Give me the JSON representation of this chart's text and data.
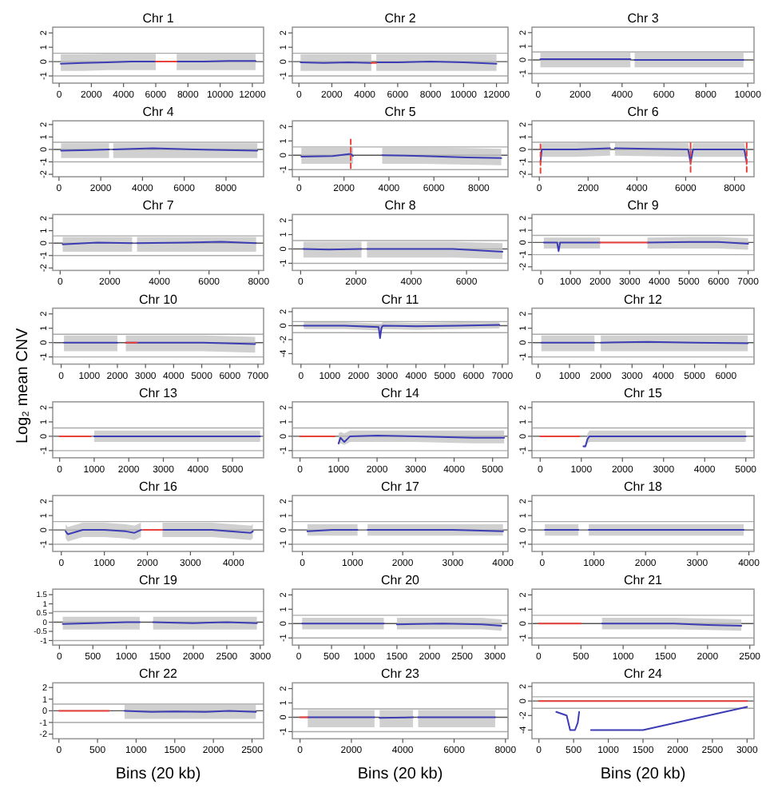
{
  "chart_data": [
    {
      "type": "line",
      "title": "Chr 1",
      "xlim": [
        -400,
        12700
      ],
      "xticks": [
        0,
        2000,
        4000,
        6000,
        8000,
        10000,
        12000
      ],
      "ylim": [
        -1.5,
        2.4
      ],
      "yticks": [
        -1,
        0,
        1,
        2
      ],
      "ref_lines": [
        {
          "axis": "y",
          "value": 0.58,
          "color": "#aaaaaa"
        },
        {
          "axis": "y",
          "value": 0,
          "color": "#555555"
        },
        {
          "axis": "y",
          "value": -1,
          "color": "#aaaaaa"
        }
      ],
      "series": [
        {
          "color": "#3c3cb4",
          "x": [
            100,
            1500,
            3000,
            4500,
            6000,
            6500,
            7300,
            9000,
            10500,
            12200
          ],
          "values": [
            -0.15,
            -0.1,
            -0.05,
            0,
            0,
            null,
            0,
            0,
            0.05,
            0.05
          ],
          "lower": [
            -0.65,
            -0.65,
            -0.6,
            -0.6,
            -0.6,
            null,
            -0.6,
            -0.6,
            -0.6,
            -0.6
          ],
          "upper": [
            0.5,
            0.5,
            0.55,
            0.55,
            0.55,
            null,
            0.55,
            0.55,
            0.55,
            0.55
          ]
        },
        {
          "color": "#e8413c",
          "x": [
            6000,
            7300
          ],
          "values": [
            0,
            0
          ]
        }
      ]
    },
    {
      "type": "line",
      "title": "Chr 2",
      "xlim": [
        -400,
        12700
      ],
      "xticks": [
        0,
        2000,
        4000,
        6000,
        8000,
        10000,
        12000
      ],
      "ylim": [
        -1.5,
        2.4
      ],
      "yticks": [
        -1,
        0,
        1,
        2
      ],
      "ref_lines": [
        {
          "axis": "y",
          "value": 0.58,
          "color": "#aaaaaa"
        },
        {
          "axis": "y",
          "value": 0,
          "color": "#555555"
        },
        {
          "axis": "y",
          "value": -1,
          "color": "#aaaaaa"
        }
      ],
      "series": [
        {
          "color": "#3c3cb4",
          "x": [
            100,
            1500,
            3000,
            4400,
            4550,
            4700,
            6000,
            8000,
            10000,
            12000
          ],
          "values": [
            -0.05,
            -0.1,
            -0.05,
            -0.1,
            null,
            -0.05,
            -0.05,
            0,
            -0.05,
            -0.15
          ],
          "lower": [
            -0.65,
            -0.65,
            -0.65,
            -0.65,
            null,
            -0.65,
            -0.65,
            -0.65,
            -0.65,
            -0.65
          ],
          "upper": [
            0.5,
            0.5,
            0.5,
            0.5,
            null,
            0.5,
            0.5,
            0.5,
            0.5,
            0.5
          ]
        },
        {
          "color": "#e8413c",
          "x": [
            4400,
            4700
          ],
          "values": [
            -0.1,
            -0.1
          ]
        }
      ]
    },
    {
      "type": "line",
      "title": "Chr 3",
      "xlim": [
        -300,
        10300
      ],
      "xticks": [
        0,
        2000,
        4000,
        6000,
        8000,
        10000
      ],
      "ylim": [
        -1.7,
        2.4
      ],
      "yticks": [
        -1,
        0,
        1,
        2
      ],
      "ref_lines": [
        {
          "axis": "y",
          "value": 0.58,
          "color": "#aaaaaa"
        },
        {
          "axis": "y",
          "value": 0,
          "color": "#555555"
        },
        {
          "axis": "y",
          "value": -1,
          "color": "#aaaaaa"
        }
      ],
      "series": [
        {
          "color": "#3c3cb4",
          "x": [
            100,
            2000,
            4400,
            4500,
            4600,
            6000,
            8000,
            9800
          ],
          "values": [
            0.05,
            0.05,
            0.05,
            null,
            0,
            0,
            0,
            0
          ],
          "lower": [
            -0.55,
            -0.55,
            -0.55,
            null,
            -0.55,
            -0.55,
            -0.55,
            -0.55
          ],
          "upper": [
            0.6,
            0.6,
            0.6,
            null,
            0.6,
            0.6,
            0.6,
            0.6
          ]
        }
      ]
    },
    {
      "type": "line",
      "title": "Chr 4",
      "xlim": [
        -300,
        9800
      ],
      "xticks": [
        0,
        2000,
        4000,
        6000,
        8000
      ],
      "ylim": [
        -2.2,
        2.3
      ],
      "yticks": [
        -2,
        -1,
        0,
        1,
        2
      ],
      "ref_lines": [
        {
          "axis": "y",
          "value": 0.58,
          "color": "#aaaaaa"
        },
        {
          "axis": "y",
          "value": 0,
          "color": "#555555"
        },
        {
          "axis": "y",
          "value": -1,
          "color": "#aaaaaa"
        }
      ],
      "series": [
        {
          "color": "#3c3cb4",
          "x": [
            100,
            1500,
            2400,
            2500,
            2600,
            4500,
            6500,
            9500
          ],
          "values": [
            -0.1,
            -0.05,
            0,
            null,
            0,
            0.1,
            0,
            -0.1
          ],
          "lower": [
            -0.7,
            -0.7,
            -0.7,
            null,
            -0.7,
            -0.7,
            -0.7,
            -0.7
          ],
          "upper": [
            0.5,
            0.5,
            0.5,
            null,
            0.5,
            0.5,
            0.5,
            0.5
          ]
        }
      ]
    },
    {
      "type": "line",
      "title": "Chr 5",
      "xlim": [
        -300,
        9300
      ],
      "xticks": [
        0,
        2000,
        4000,
        6000,
        8000
      ],
      "ylim": [
        -1.5,
        2.4
      ],
      "yticks": [
        -1,
        0,
        1,
        2
      ],
      "ref_lines": [
        {
          "axis": "y",
          "value": 0.58,
          "color": "#aaaaaa"
        },
        {
          "axis": "y",
          "value": 0,
          "color": "#555555"
        },
        {
          "axis": "y",
          "value": -1,
          "color": "#aaaaaa"
        }
      ],
      "series": [
        {
          "color": "#3c3cb4",
          "x": [
            100,
            1500,
            2300,
            2400,
            3500,
            3700,
            5500,
            7500,
            9000
          ],
          "values": [
            -0.1,
            -0.05,
            0.1,
            -0.05,
            null,
            0,
            -0.05,
            -0.15,
            -0.2
          ],
          "lower": [
            -0.6,
            -0.6,
            -0.6,
            -0.6,
            null,
            -0.6,
            -0.6,
            -0.65,
            -0.7
          ],
          "upper": [
            0.55,
            0.55,
            0.55,
            0.55,
            null,
            0.55,
            0.55,
            0.5,
            0.45
          ]
        },
        {
          "color": "#e8413c",
          "line_style": "dashed",
          "x": [
            2300,
            2300
          ],
          "values": [
            -0.9,
            1.3
          ]
        }
      ]
    },
    {
      "type": "line",
      "title": "Chr 6",
      "xlim": [
        -300,
        8800
      ],
      "xticks": [
        0,
        2000,
        4000,
        6000,
        8000
      ],
      "ylim": [
        -2.2,
        2.3
      ],
      "yticks": [
        -2,
        -1,
        0,
        1,
        2
      ],
      "ref_lines": [
        {
          "axis": "y",
          "value": 0.58,
          "color": "#aaaaaa"
        },
        {
          "axis": "y",
          "value": 0,
          "color": "#555555"
        },
        {
          "axis": "y",
          "value": -1,
          "color": "#aaaaaa"
        }
      ],
      "series": [
        {
          "color": "#3c3cb4",
          "x": [
            50,
            100,
            200,
            1500,
            2900,
            3000,
            3100,
            4500,
            6100,
            6200,
            6300,
            7500,
            8400,
            8500
          ],
          "values": [
            -1,
            0,
            0,
            0,
            0.1,
            null,
            0.1,
            0.05,
            0,
            -1,
            0,
            0,
            0,
            -1
          ],
          "lower": [
            -1.6,
            -0.6,
            -0.6,
            -0.6,
            -0.5,
            null,
            -0.5,
            -0.55,
            -0.6,
            -1.6,
            -0.6,
            -0.6,
            -0.6,
            -1.6
          ],
          "upper": [
            -0.5,
            0.5,
            0.5,
            0.5,
            0.6,
            null,
            0.6,
            0.55,
            0.5,
            -0.5,
            0.5,
            0.5,
            0.5,
            -0.5
          ]
        },
        {
          "color": "#e8413c",
          "line_style": "dashed",
          "x": [
            50,
            50
          ],
          "values": [
            -1.9,
            0.5
          ]
        },
        {
          "color": "#e8413c",
          "line_style": "dashed",
          "x": [
            6200,
            6200
          ],
          "values": [
            -1.8,
            0.6
          ]
        },
        {
          "color": "#e8413c",
          "line_style": "dashed",
          "x": [
            8500,
            8500
          ],
          "values": [
            -1.8,
            0.6
          ]
        }
      ]
    },
    {
      "type": "line",
      "title": "Chr 7",
      "xlim": [
        -300,
        8200
      ],
      "xticks": [
        0,
        2000,
        4000,
        6000,
        8000
      ],
      "ylim": [
        -2.2,
        2.3
      ],
      "yticks": [
        -2,
        -1,
        0,
        1,
        2
      ],
      "ref_lines": [
        {
          "axis": "y",
          "value": 0.58,
          "color": "#aaaaaa"
        },
        {
          "axis": "y",
          "value": 0,
          "color": "#555555"
        },
        {
          "axis": "y",
          "value": -1,
          "color": "#aaaaaa"
        }
      ],
      "series": [
        {
          "color": "#3c3cb4",
          "x": [
            100,
            1500,
            2900,
            3000,
            3100,
            5000,
            6500,
            7900
          ],
          "values": [
            -0.1,
            0.05,
            0,
            null,
            0,
            0.05,
            0.1,
            0
          ],
          "lower": [
            -0.7,
            -0.7,
            -0.7,
            null,
            -0.7,
            -0.7,
            -0.7,
            -0.7
          ],
          "upper": [
            0.5,
            0.5,
            0.5,
            null,
            0.5,
            0.5,
            0.5,
            0.5
          ]
        }
      ]
    },
    {
      "type": "line",
      "title": "Chr 8",
      "xlim": [
        -300,
        7500
      ],
      "xticks": [
        0,
        2000,
        4000,
        6000
      ],
      "ylim": [
        -1.5,
        2.4
      ],
      "yticks": [
        -1,
        0,
        1,
        2
      ],
      "ref_lines": [
        {
          "axis": "y",
          "value": 0.58,
          "color": "#aaaaaa"
        },
        {
          "axis": "y",
          "value": 0,
          "color": "#555555"
        },
        {
          "axis": "y",
          "value": -1,
          "color": "#aaaaaa"
        }
      ],
      "series": [
        {
          "color": "#3c3cb4",
          "x": [
            100,
            1000,
            2200,
            2300,
            2400,
            4000,
            5500,
            7300
          ],
          "values": [
            0,
            -0.05,
            0,
            null,
            0,
            0,
            0,
            -0.2
          ],
          "lower": [
            -0.6,
            -0.6,
            -0.6,
            null,
            -0.6,
            -0.6,
            -0.6,
            -0.7
          ],
          "upper": [
            0.5,
            0.5,
            0.5,
            null,
            0.5,
            0.5,
            0.5,
            0.4
          ]
        }
      ]
    },
    {
      "type": "line",
      "title": "Chr 9",
      "xlim": [
        -300,
        7200
      ],
      "xticks": [
        0,
        1000,
        2000,
        3000,
        4000,
        5000,
        6000,
        7000
      ],
      "ylim": [
        -2.3,
        2.3
      ],
      "yticks": [
        -2,
        -1,
        0,
        1,
        2
      ],
      "ref_lines": [
        {
          "axis": "y",
          "value": 0.58,
          "color": "#aaaaaa"
        },
        {
          "axis": "y",
          "value": 0,
          "color": "#555555"
        },
        {
          "axis": "y",
          "value": -1,
          "color": "#aaaaaa"
        }
      ],
      "series": [
        {
          "color": "#3c3cb4",
          "x": [
            100,
            550,
            600,
            650,
            2000,
            2050,
            3600,
            5000,
            6000,
            7000
          ],
          "values": [
            0,
            0,
            -0.7,
            0,
            0,
            null,
            0,
            0.05,
            0.05,
            -0.1
          ],
          "lower": [
            -0.5,
            -0.5,
            -0.9,
            -0.5,
            -0.5,
            null,
            -0.5,
            -0.5,
            -0.5,
            -0.6
          ],
          "upper": [
            0.4,
            0.4,
            0.4,
            0.4,
            0.4,
            null,
            0.4,
            0.45,
            0.45,
            0.35
          ]
        },
        {
          "color": "#e8413c",
          "x": [
            2000,
            3600
          ],
          "values": [
            0,
            0
          ]
        }
      ]
    },
    {
      "type": "line",
      "title": "Chr 10",
      "xlim": [
        -300,
        7200
      ],
      "xticks": [
        0,
        1000,
        2000,
        3000,
        4000,
        5000,
        6000,
        7000
      ],
      "ylim": [
        -1.5,
        2.4
      ],
      "yticks": [
        -1,
        0,
        1,
        2
      ],
      "ref_lines": [
        {
          "axis": "y",
          "value": 0.58,
          "color": "#aaaaaa"
        },
        {
          "axis": "y",
          "value": 0,
          "color": "#555555"
        },
        {
          "axis": "y",
          "value": -1,
          "color": "#aaaaaa"
        }
      ],
      "series": [
        {
          "color": "#3c3cb4",
          "x": [
            100,
            1000,
            2000,
            2150,
            2300,
            3500,
            5000,
            6900
          ],
          "values": [
            0,
            0,
            0,
            null,
            0,
            0,
            0,
            -0.1
          ],
          "lower": [
            -0.6,
            -0.6,
            -0.6,
            null,
            -0.6,
            -0.6,
            -0.6,
            -0.7
          ],
          "upper": [
            0.5,
            0.5,
            0.5,
            null,
            0.5,
            0.5,
            0.5,
            0.4
          ]
        },
        {
          "color": "#e8413c",
          "x": [
            2300,
            2700
          ],
          "values": [
            0,
            0
          ]
        }
      ]
    },
    {
      "type": "line",
      "title": "Chr 11",
      "xlim": [
        -300,
        7200
      ],
      "xticks": [
        0,
        1000,
        2000,
        3000,
        4000,
        5000,
        6000,
        7000
      ],
      "ylim": [
        -5.5,
        2.5
      ],
      "yticks": [
        -4,
        -2,
        0,
        2
      ],
      "ref_lines": [
        {
          "axis": "y",
          "value": 0.58,
          "color": "#aaaaaa"
        },
        {
          "axis": "y",
          "value": 0,
          "color": "#555555"
        },
        {
          "axis": "y",
          "value": -1,
          "color": "#aaaaaa"
        }
      ],
      "series": [
        {
          "color": "#3c3cb4",
          "x": [
            100,
            1500,
            2700,
            2750,
            2800,
            2850,
            4000,
            5500,
            6900
          ],
          "values": [
            0,
            0,
            -0.2,
            -1.8,
            -0.3,
            0,
            -0.1,
            0,
            0.1
          ],
          "lower": [
            -0.5,
            -0.5,
            -0.7,
            -2,
            -0.8,
            -0.5,
            -0.6,
            -0.5,
            -0.4
          ],
          "upper": [
            0.5,
            0.5,
            0.3,
            0.3,
            0.3,
            0.5,
            0.4,
            0.5,
            0.6
          ]
        }
      ]
    },
    {
      "type": "line",
      "title": "Chr 12",
      "xlim": [
        -200,
        6900
      ],
      "xticks": [
        0,
        1000,
        2000,
        3000,
        4000,
        5000,
        6000
      ],
      "ylim": [
        -1.5,
        2.4
      ],
      "yticks": [
        -1,
        0,
        1,
        2
      ],
      "ref_lines": [
        {
          "axis": "y",
          "value": 0.58,
          "color": "#aaaaaa"
        },
        {
          "axis": "y",
          "value": 0,
          "color": "#555555"
        },
        {
          "axis": "y",
          "value": -1,
          "color": "#aaaaaa"
        }
      ],
      "series": [
        {
          "color": "#3c3cb4",
          "x": [
            100,
            1000,
            1800,
            1900,
            2000,
            3500,
            5000,
            6700
          ],
          "values": [
            0,
            0,
            0,
            null,
            0,
            0.05,
            0,
            -0.05
          ],
          "lower": [
            -0.6,
            -0.6,
            -0.6,
            null,
            -0.6,
            -0.6,
            -0.6,
            -0.6
          ],
          "upper": [
            0.5,
            0.5,
            0.5,
            null,
            0.5,
            0.5,
            0.5,
            0.5
          ]
        }
      ]
    },
    {
      "type": "line",
      "title": "Chr 13",
      "ylabel": "Log₂ mean CNV",
      "xlim": [
        -200,
        5900
      ],
      "xticks": [
        0,
        1000,
        2000,
        3000,
        4000,
        5000
      ],
      "ylim": [
        -1.5,
        2.4
      ],
      "yticks": [
        -1,
        0,
        1,
        2
      ],
      "ref_lines": [
        {
          "axis": "y",
          "value": 0.58,
          "color": "#aaaaaa"
        },
        {
          "axis": "y",
          "value": 0,
          "color": "#555555"
        },
        {
          "axis": "y",
          "value": -1,
          "color": "#aaaaaa"
        }
      ],
      "series": [
        {
          "color": "#3c3cb4",
          "x": [
            1000,
            2000,
            3000,
            4000,
            5000,
            5800
          ],
          "values": [
            0,
            0,
            0,
            0,
            0,
            0
          ],
          "lower": [
            -0.4,
            -0.4,
            -0.4,
            -0.4,
            -0.4,
            -0.4
          ],
          "upper": [
            0.4,
            0.4,
            0.4,
            0.4,
            0.4,
            0.4
          ]
        },
        {
          "color": "#e8413c",
          "x": [
            0,
            900
          ],
          "values": [
            0,
            0
          ]
        }
      ]
    },
    {
      "type": "line",
      "title": "Chr 14",
      "xlim": [
        -200,
        5400
      ],
      "xticks": [
        0,
        1000,
        2000,
        3000,
        4000,
        5000
      ],
      "ylim": [
        -1.5,
        2.4
      ],
      "yticks": [
        -1,
        0,
        1,
        2
      ],
      "ref_lines": [
        {
          "axis": "y",
          "value": 0.58,
          "color": "#aaaaaa"
        },
        {
          "axis": "y",
          "value": 0,
          "color": "#555555"
        },
        {
          "axis": "y",
          "value": -1,
          "color": "#aaaaaa"
        }
      ],
      "series": [
        {
          "color": "#3c3cb4",
          "x": [
            1000,
            1050,
            1150,
            1300,
            2000,
            3000,
            4500,
            5300
          ],
          "values": [
            -0.5,
            -0.1,
            -0.4,
            0,
            0.05,
            0,
            -0.1,
            -0.1
          ],
          "lower": [
            -0.6,
            -0.5,
            -0.6,
            -0.4,
            -0.4,
            -0.4,
            -0.5,
            -0.5
          ],
          "upper": [
            0.2,
            0.3,
            0.2,
            0.4,
            0.4,
            0.4,
            0.4,
            0.4
          ]
        },
        {
          "color": "#e8413c",
          "x": [
            0,
            900
          ],
          "values": [
            0,
            0
          ]
        }
      ]
    },
    {
      "type": "line",
      "title": "Chr 15",
      "xlim": [
        -200,
        5200
      ],
      "xticks": [
        0,
        1000,
        2000,
        3000,
        4000,
        5000
      ],
      "ylim": [
        -1.5,
        2.4
      ],
      "yticks": [
        -1,
        0,
        1,
        2
      ],
      "ref_lines": [
        {
          "axis": "y",
          "value": 0.58,
          "color": "#aaaaaa"
        },
        {
          "axis": "y",
          "value": 0,
          "color": "#555555"
        },
        {
          "axis": "y",
          "value": -1,
          "color": "#aaaaaa"
        }
      ],
      "series": [
        {
          "color": "#3c3cb4",
          "x": [
            1050,
            1100,
            1150,
            1200,
            2000,
            3000,
            4000,
            5000
          ],
          "values": [
            -0.7,
            -0.7,
            -0.2,
            0,
            0,
            0,
            0,
            0
          ],
          "lower": [
            -0.8,
            -0.8,
            -0.5,
            -0.4,
            -0.4,
            -0.4,
            -0.4,
            -0.4
          ],
          "upper": [
            -0.6,
            -0.6,
            0.2,
            0.4,
            0.4,
            0.4,
            0.4,
            0.4
          ]
        },
        {
          "color": "#e8413c",
          "x": [
            0,
            950
          ],
          "values": [
            0,
            0
          ]
        }
      ]
    },
    {
      "type": "line",
      "title": "Chr 16",
      "xlim": [
        -200,
        4700
      ],
      "xticks": [
        0,
        1000,
        2000,
        3000,
        4000
      ],
      "ylim": [
        -1.5,
        2.4
      ],
      "yticks": [
        -1,
        0,
        1,
        2
      ],
      "ref_lines": [
        {
          "axis": "y",
          "value": 0.58,
          "color": "#aaaaaa"
        },
        {
          "axis": "y",
          "value": 0,
          "color": "#555555"
        },
        {
          "axis": "y",
          "value": -1,
          "color": "#aaaaaa"
        }
      ],
      "series": [
        {
          "color": "#3c3cb4",
          "x": [
            100,
            150,
            500,
            1000,
            1500,
            1700,
            1850,
            2100,
            2350,
            3000,
            3500,
            4400,
            4450
          ],
          "values": [
            -0.1,
            -0.3,
            0,
            0,
            -0.1,
            -0.2,
            0,
            null,
            0,
            0,
            0,
            -0.2,
            -0.1
          ],
          "lower": [
            -0.6,
            -0.8,
            -0.5,
            -0.5,
            -0.6,
            -0.7,
            -0.5,
            null,
            -0.5,
            -0.5,
            -0.5,
            -0.7,
            -0.6
          ],
          "upper": [
            0.4,
            0.2,
            0.5,
            0.5,
            0.4,
            0.3,
            0.5,
            null,
            0.5,
            0.5,
            0.5,
            0.3,
            0.4
          ]
        },
        {
          "color": "#e8413c",
          "x": [
            1900,
            2350
          ],
          "values": [
            0,
            0
          ]
        }
      ]
    },
    {
      "type": "line",
      "title": "Chr 17",
      "xlim": [
        -200,
        4100
      ],
      "xticks": [
        0,
        1000,
        2000,
        3000,
        4000
      ],
      "ylim": [
        -1.5,
        2.4
      ],
      "yticks": [
        -1,
        0,
        1,
        2
      ],
      "ref_lines": [
        {
          "axis": "y",
          "value": 0.58,
          "color": "#aaaaaa"
        },
        {
          "axis": "y",
          "value": 0,
          "color": "#555555"
        },
        {
          "axis": "y",
          "value": -1,
          "color": "#aaaaaa"
        }
      ],
      "series": [
        {
          "color": "#3c3cb4",
          "x": [
            100,
            600,
            1100,
            1200,
            1300,
            2000,
            3000,
            4000
          ],
          "values": [
            -0.1,
            0,
            0,
            null,
            0,
            0,
            0,
            -0.1
          ],
          "lower": [
            -0.4,
            -0.4,
            -0.4,
            null,
            -0.4,
            -0.4,
            -0.4,
            -0.4
          ],
          "upper": [
            0.4,
            0.4,
            0.4,
            null,
            0.4,
            0.4,
            0.4,
            0.4
          ]
        }
      ]
    },
    {
      "type": "line",
      "title": "Chr 18",
      "xlim": [
        -200,
        4100
      ],
      "xticks": [
        0,
        1000,
        2000,
        3000,
        4000
      ],
      "ylim": [
        -1.5,
        2.4
      ],
      "yticks": [
        -1,
        0,
        1,
        2
      ],
      "ref_lines": [
        {
          "axis": "y",
          "value": 0.58,
          "color": "#aaaaaa"
        },
        {
          "axis": "y",
          "value": 0,
          "color": "#555555"
        },
        {
          "axis": "y",
          "value": -1,
          "color": "#aaaaaa"
        }
      ],
      "series": [
        {
          "color": "#3c3cb4",
          "x": [
            50,
            700,
            800,
            900,
            2000,
            3000,
            3900
          ],
          "values": [
            0,
            0,
            null,
            0,
            0,
            0,
            0
          ],
          "lower": [
            -0.4,
            -0.4,
            null,
            -0.4,
            -0.4,
            -0.4,
            -0.4
          ],
          "upper": [
            0.4,
            0.4,
            null,
            0.4,
            0.4,
            0.4,
            0.4
          ]
        }
      ]
    },
    {
      "type": "line",
      "title": "Chr 19",
      "xlim": [
        -100,
        3050
      ],
      "xticks": [
        0,
        500,
        1000,
        1500,
        2000,
        2500,
        3000
      ],
      "ylim": [
        -1.25,
        1.8
      ],
      "yticks": [
        -1,
        -0.5,
        0,
        0.5,
        1,
        1.5
      ],
      "ref_lines": [
        {
          "axis": "y",
          "value": 0.58,
          "color": "#aaaaaa"
        },
        {
          "axis": "y",
          "value": 0,
          "color": "#555555"
        },
        {
          "axis": "y",
          "value": -1,
          "color": "#aaaaaa"
        }
      ],
      "series": [
        {
          "color": "#3c3cb4",
          "x": [
            50,
            500,
            1000,
            1200,
            1300,
            1400,
            2000,
            2500,
            2950
          ],
          "values": [
            -0.1,
            -0.05,
            0,
            0,
            null,
            0,
            -0.05,
            0,
            -0.05
          ],
          "lower": [
            -0.4,
            -0.4,
            -0.4,
            -0.4,
            null,
            -0.4,
            -0.4,
            -0.4,
            -0.4
          ],
          "upper": [
            0.3,
            0.3,
            0.3,
            0.3,
            null,
            0.3,
            0.3,
            0.3,
            0.3
          ]
        }
      ]
    },
    {
      "type": "line",
      "title": "Chr 20",
      "xlim": [
        -100,
        3200
      ],
      "xticks": [
        0,
        500,
        1000,
        1500,
        2000,
        2500,
        3000
      ],
      "ylim": [
        -1.5,
        2.4
      ],
      "yticks": [
        -1,
        0,
        1,
        2
      ],
      "ref_lines": [
        {
          "axis": "y",
          "value": 0.58,
          "color": "#aaaaaa"
        },
        {
          "axis": "y",
          "value": 0,
          "color": "#555555"
        },
        {
          "axis": "y",
          "value": -1,
          "color": "#aaaaaa"
        }
      ],
      "series": [
        {
          "color": "#3c3cb4",
          "x": [
            50,
            700,
            1300,
            1400,
            1500,
            2200,
            2800,
            3100
          ],
          "values": [
            0,
            0,
            0,
            null,
            -0.05,
            0,
            -0.05,
            -0.15
          ],
          "lower": [
            -0.4,
            -0.4,
            -0.4,
            null,
            -0.4,
            -0.4,
            -0.4,
            -0.5
          ],
          "upper": [
            0.4,
            0.4,
            0.4,
            null,
            0.4,
            0.4,
            0.4,
            0.3
          ]
        }
      ]
    },
    {
      "type": "line",
      "title": "Chr 21",
      "xlim": [
        -80,
        2550
      ],
      "xticks": [
        0,
        500,
        1000,
        1500,
        2000,
        2500
      ],
      "ylim": [
        -1.5,
        2.4
      ],
      "yticks": [
        -1,
        0,
        1,
        2
      ],
      "ref_lines": [
        {
          "axis": "y",
          "value": 0.58,
          "color": "#aaaaaa"
        },
        {
          "axis": "y",
          "value": 0,
          "color": "#555555"
        },
        {
          "axis": "y",
          "value": -1,
          "color": "#aaaaaa"
        }
      ],
      "series": [
        {
          "color": "#3c3cb4",
          "x": [
            750,
            1200,
            1600,
            2000,
            2400
          ],
          "values": [
            0,
            0,
            0,
            -0.1,
            -0.15
          ],
          "lower": [
            -0.4,
            -0.4,
            -0.4,
            -0.45,
            -0.5
          ],
          "upper": [
            0.4,
            0.4,
            0.4,
            0.35,
            0.3
          ]
        },
        {
          "color": "#e8413c",
          "x": [
            0,
            500
          ],
          "values": [
            0,
            0
          ]
        }
      ]
    },
    {
      "type": "line",
      "title": "Chr 22",
      "xlabel": "Bins (20 kb)",
      "xlim": [
        -80,
        2650
      ],
      "xticks": [
        0,
        500,
        1000,
        1500,
        2000,
        2500
      ],
      "ylim": [
        -2.4,
        2.4
      ],
      "yticks": [
        -2,
        -1,
        0,
        1,
        2
      ],
      "ref_lines": [
        {
          "axis": "y",
          "value": 0.58,
          "color": "#aaaaaa"
        },
        {
          "axis": "y",
          "value": 0,
          "color": "#555555"
        },
        {
          "axis": "y",
          "value": -1,
          "color": "#aaaaaa"
        }
      ],
      "series": [
        {
          "color": "#3c3cb4",
          "x": [
            850,
            1200,
            1500,
            1900,
            2200,
            2550
          ],
          "values": [
            0,
            -0.1,
            -0.05,
            -0.1,
            0,
            -0.1
          ],
          "lower": [
            -0.7,
            -0.7,
            -0.7,
            -0.7,
            -0.7,
            -0.7
          ],
          "upper": [
            0.5,
            0.5,
            0.5,
            0.5,
            0.5,
            0.5
          ]
        },
        {
          "color": "#e8413c",
          "x": [
            0,
            650
          ],
          "values": [
            0,
            0
          ]
        }
      ]
    },
    {
      "type": "line",
      "title": "Chr 23",
      "xlabel": "Bins (20 kb)",
      "xlim": [
        -300,
        8100
      ],
      "xticks": [
        0,
        2000,
        4000,
        6000,
        8000
      ],
      "ylim": [
        -1.5,
        2.4
      ],
      "yticks": [
        -1,
        0,
        1,
        2
      ],
      "ref_lines": [
        {
          "axis": "y",
          "value": 0.58,
          "color": "#aaaaaa"
        },
        {
          "axis": "y",
          "value": 0,
          "color": "#555555"
        },
        {
          "axis": "y",
          "value": -1,
          "color": "#aaaaaa"
        }
      ],
      "series": [
        {
          "color": "#3c3cb4",
          "x": [
            300,
            1500,
            2900,
            3000,
            3100,
            4400,
            4500,
            4600,
            6000,
            7600
          ],
          "values": [
            0,
            0,
            0,
            null,
            -0.05,
            0,
            null,
            0,
            0,
            0
          ],
          "lower": [
            -0.7,
            -0.7,
            -0.7,
            null,
            -0.7,
            -0.7,
            null,
            -0.7,
            -0.7,
            -0.7
          ],
          "upper": [
            0.5,
            0.5,
            0.5,
            null,
            0.5,
            0.5,
            null,
            0.5,
            0.5,
            0.5
          ]
        },
        {
          "color": "#e8413c",
          "x": [
            0,
            300
          ],
          "values": [
            0,
            0
          ]
        }
      ]
    },
    {
      "type": "line",
      "title": "Chr 24",
      "xlabel": "Bins (20 kb)",
      "xlim": [
        -100,
        3100
      ],
      "xticks": [
        0,
        500,
        1000,
        1500,
        2000,
        2500,
        3000
      ],
      "ylim": [
        -5.2,
        2.5
      ],
      "yticks": [
        -4,
        -2,
        0,
        2
      ],
      "ref_lines": [
        {
          "axis": "y",
          "value": 0.58,
          "color": "#aaaaaa"
        },
        {
          "axis": "y",
          "value": 0,
          "color": "#555555"
        },
        {
          "axis": "y",
          "value": -1,
          "color": "#aaaaaa"
        }
      ],
      "series": [
        {
          "color": "#3c3cb4",
          "x": [
            250,
            400,
            450,
            520,
            560,
            580,
            650,
            750,
            1500,
            3000
          ],
          "values": [
            -1.5,
            -2,
            -4,
            -4,
            -3,
            -1.5,
            null,
            -4,
            -4,
            -0.8
          ]
        },
        {
          "color": "#e8413c",
          "x": [
            0,
            3000
          ],
          "values": [
            0,
            0
          ]
        }
      ]
    }
  ]
}
